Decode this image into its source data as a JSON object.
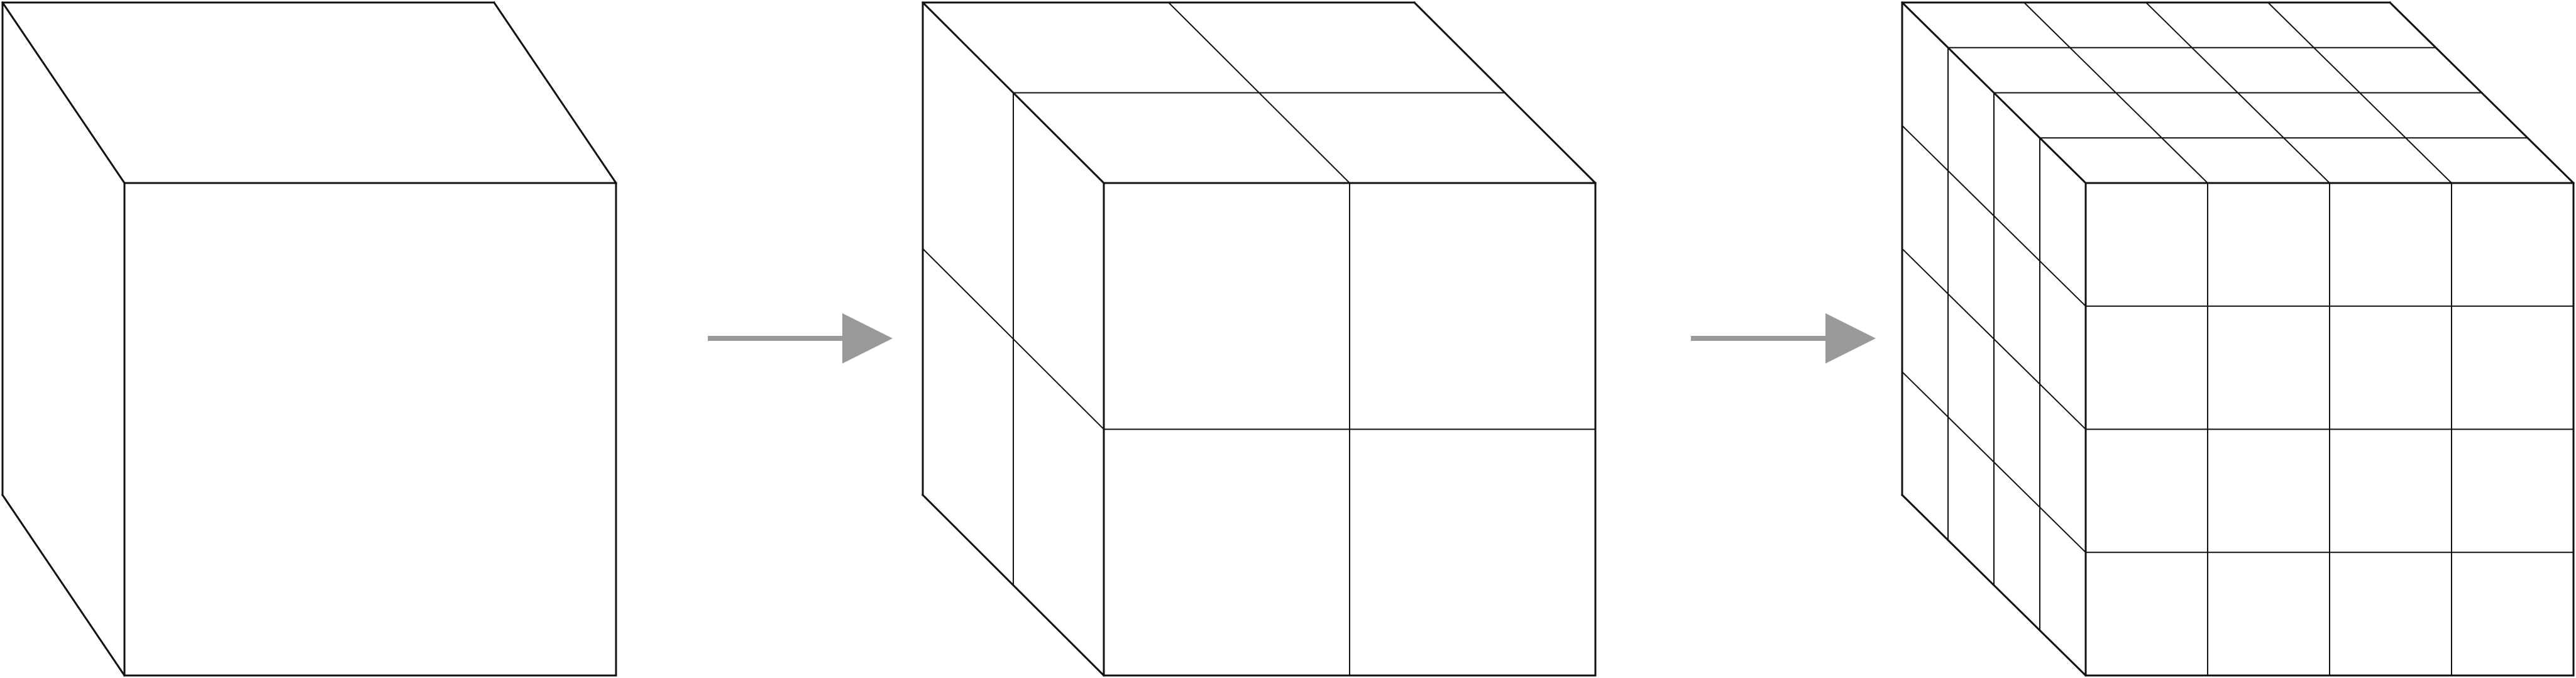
{
  "diagram": {
    "title": "",
    "description_visible_text": "",
    "line_color": "#111111",
    "arrow_color": "#999999",
    "background_color": "#ffffff",
    "steps": [
      {
        "name": "cube-level-1",
        "subdivisions": 1
      },
      {
        "name": "cube-level-2",
        "subdivisions": 2
      },
      {
        "name": "cube-level-3",
        "subdivisions": 4
      }
    ],
    "arrows": [
      {
        "name": "arrow-1-to-2",
        "from": "cube-level-1",
        "to": "cube-level-2"
      },
      {
        "name": "arrow-2-to-3",
        "from": "cube-level-2",
        "to": "cube-level-3"
      }
    ]
  }
}
